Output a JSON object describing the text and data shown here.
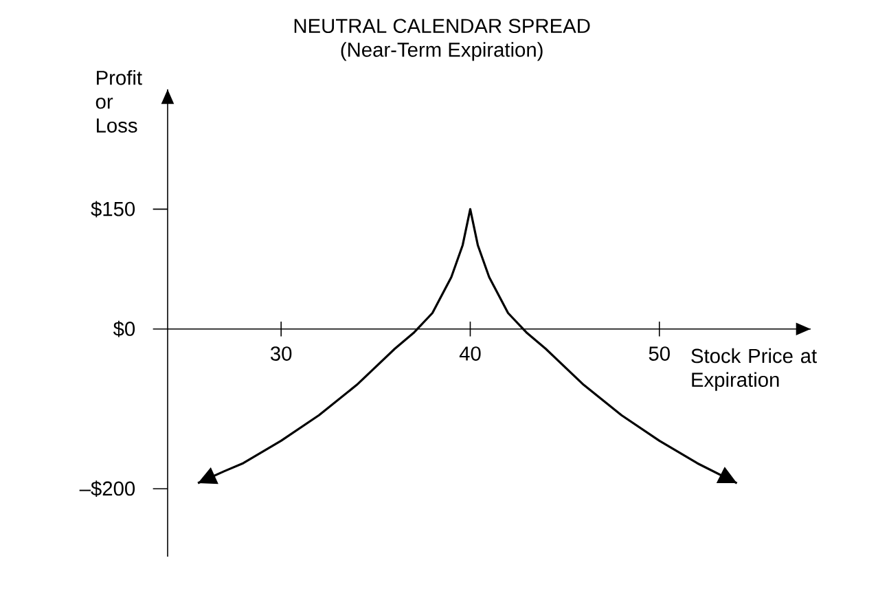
{
  "chart_data": {
    "type": "line",
    "title": "NEUTRAL CALENDAR SPREAD",
    "subtitle": "(Near-Term Expiration)",
    "xlabel": "Stock Price at Expiration",
    "ylabel": "Profit or Loss",
    "x": [
      25.6,
      27,
      28,
      30,
      32,
      34,
      36,
      37,
      38,
      39,
      39.6,
      40,
      40.4,
      41,
      42,
      43,
      44,
      46,
      48,
      50,
      52,
      54.1
    ],
    "values": [
      -193,
      -178,
      -168,
      -140,
      -108,
      -70,
      -25,
      -5,
      20,
      65,
      105,
      150,
      105,
      65,
      20,
      -5,
      -25,
      -70,
      -108,
      -140,
      -168,
      -193
    ],
    "color": "#000000",
    "marker": "none",
    "line_style": "solid",
    "grid": false,
    "xlim": [
      24,
      58
    ],
    "xticks": [
      30,
      40,
      50
    ],
    "ylim": [
      -285,
      300
    ],
    "yticks": [
      {
        "value": -200,
        "label": "–$200"
      },
      {
        "value": 0,
        "label": "$0"
      },
      {
        "value": 150,
        "label": "$150"
      }
    ]
  }
}
